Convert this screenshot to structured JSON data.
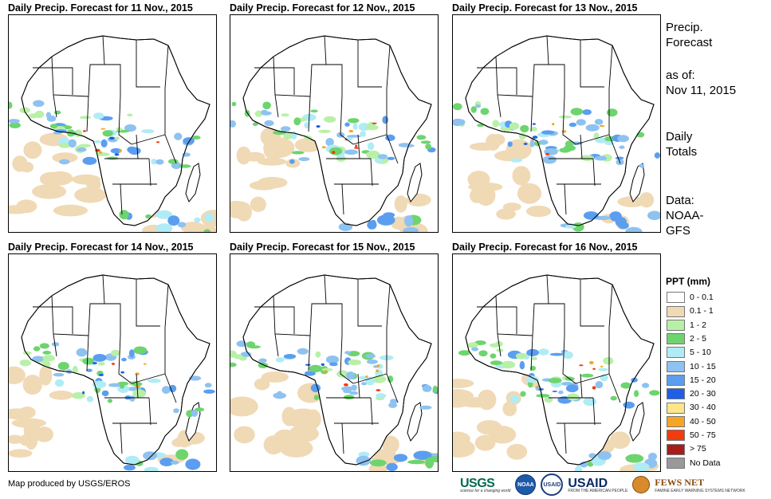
{
  "panels": [
    {
      "title": "Daily Precip. Forecast for 11 Nov., 2015",
      "pattern": "day11"
    },
    {
      "title": "Daily Precip. Forecast for 12 Nov., 2015",
      "pattern": "day12"
    },
    {
      "title": "Daily Precip. Forecast for 13 Nov., 2015",
      "pattern": "day13"
    },
    {
      "title": "Daily Precip. Forecast for 14 Nov., 2015",
      "pattern": "day14"
    },
    {
      "title": "Daily Precip. Forecast for 15 Nov., 2015",
      "pattern": "day15"
    },
    {
      "title": "Daily Precip. Forecast for 16 Nov., 2015",
      "pattern": "day16"
    }
  ],
  "side": {
    "title_line1": "Precip.",
    "title_line2": "Forecast",
    "asof_label": "as of:",
    "asof_date": "Nov 11, 2015",
    "totals_line1": "Daily",
    "totals_line2": "Totals",
    "data_line1": "Data:",
    "data_line2": "NOAA-",
    "data_line3": "GFS"
  },
  "legend": {
    "title": "PPT (mm)",
    "items": [
      {
        "label": "0 - 0.1",
        "color": "#ffffff"
      },
      {
        "label": "0.1 - 1",
        "color": "#f0d9b5"
      },
      {
        "label": "1 - 2",
        "color": "#b8f0a8"
      },
      {
        "label": "2 - 5",
        "color": "#6ed46e"
      },
      {
        "label": "5 - 10",
        "color": "#b0ecf5"
      },
      {
        "label": "10 - 15",
        "color": "#8ec2f0"
      },
      {
        "label": "15 - 20",
        "color": "#5b9ef0"
      },
      {
        "label": "20 - 30",
        "color": "#1f5ee6"
      },
      {
        "label": "30 - 40",
        "color": "#ffe68a"
      },
      {
        "label": "40 - 50",
        "color": "#f5a623"
      },
      {
        "label": "50 - 75",
        "color": "#f03c0f"
      },
      {
        "label": "> 75",
        "color": "#a81c1c"
      },
      {
        "label": "No Data",
        "color": "#999999"
      }
    ]
  },
  "footer": {
    "credit": "Map produced by USGS/EROS",
    "logos": {
      "usgs": "USGS",
      "usgs_tagline": "science for a changing world",
      "noaa": "NOAA",
      "usaid_seal": "USAID",
      "usaid": "USAID",
      "usaid_tagline": "FROM THE AMERICAN PEOPLE",
      "fews": "FEWS NET",
      "fews_tagline": "FAMINE EARLY WARNING SYSTEMS NETWORK"
    }
  }
}
